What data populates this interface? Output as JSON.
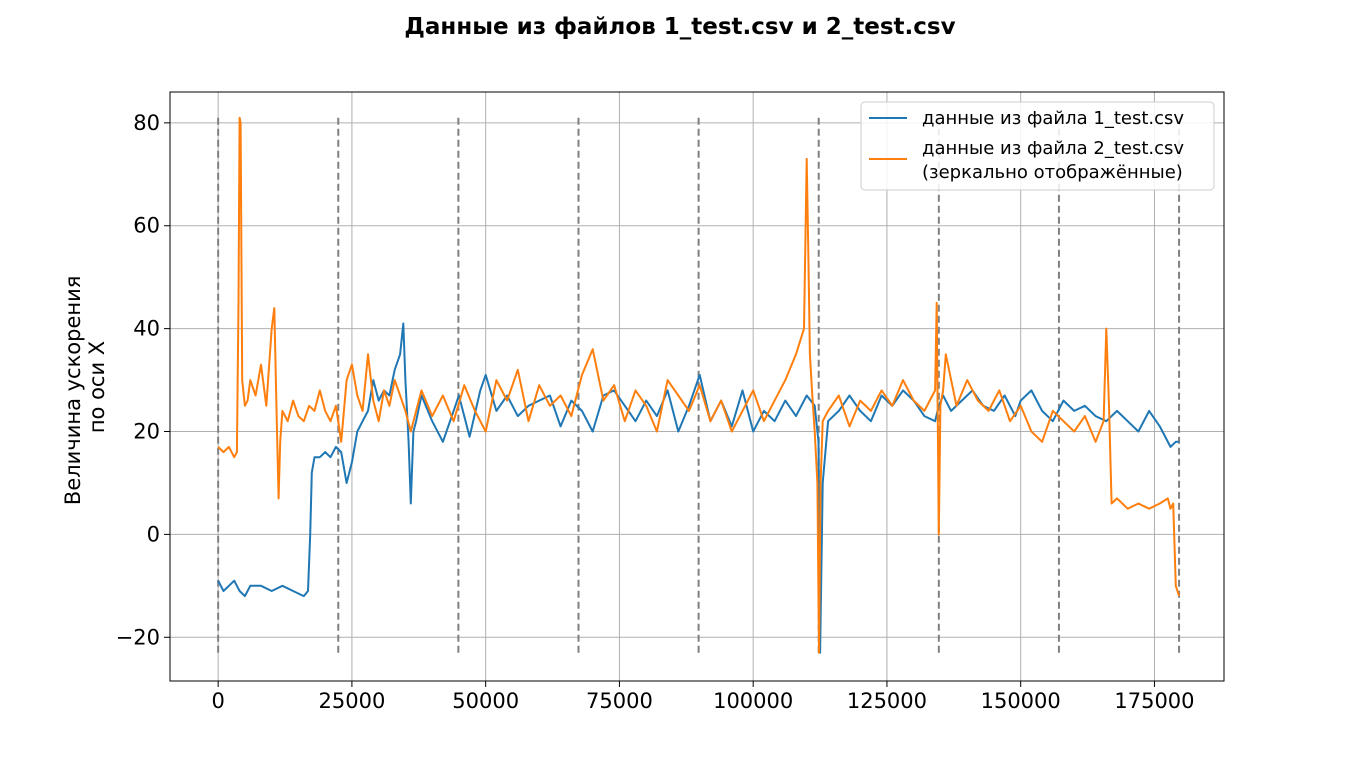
{
  "chart_data": {
    "type": "line",
    "title": "Данные из файлов 1_test.csv и 2_test.csv",
    "xlabel": "",
    "ylabel_lines": [
      "Величина ускорения",
      "по оси X"
    ],
    "xlim": [
      -9000,
      188000
    ],
    "ylim": [
      -28.5,
      86
    ],
    "x_ticks": [
      0,
      25000,
      50000,
      75000,
      100000,
      125000,
      150000,
      175000
    ],
    "x_tick_labels": [
      "0",
      "25000",
      "50000",
      "75000",
      "100000",
      "125000",
      "150000",
      "175000"
    ],
    "y_ticks": [
      -20,
      0,
      20,
      40,
      60,
      80
    ],
    "y_tick_labels": [
      "−20",
      "0",
      "20",
      "40",
      "60",
      "80"
    ],
    "grid": true,
    "legend_position": "top-right",
    "vlines": {
      "x": [
        0,
        22450,
        44900,
        67350,
        89800,
        112250,
        134700,
        157150,
        179600
      ],
      "ymin": -23,
      "ymax": 81,
      "color": "#808080",
      "style": "dashed"
    },
    "series": [
      {
        "name": "данные из файла 1_test.csv",
        "color": "#1f77b4",
        "x": [
          0,
          500,
          1000,
          2000,
          3000,
          4000,
          5000,
          6000,
          8000,
          10000,
          12000,
          14000,
          16000,
          16800,
          17200,
          17500,
          18000,
          19000,
          20000,
          21000,
          22000,
          23000,
          24000,
          25000,
          26000,
          27000,
          28000,
          29000,
          30000,
          31000,
          32000,
          33000,
          34000,
          34600,
          35000,
          35600,
          36000,
          36500,
          37000,
          38000,
          40000,
          42000,
          44000,
          45000,
          47000,
          49000,
          50000,
          52000,
          54000,
          56000,
          58000,
          60000,
          62000,
          64000,
          66000,
          68000,
          70000,
          72000,
          74000,
          76000,
          78000,
          80000,
          82000,
          84000,
          86000,
          88000,
          90000,
          92000,
          94000,
          96000,
          98000,
          100000,
          102000,
          104000,
          106000,
          108000,
          110000,
          111500,
          112200,
          112500,
          113000,
          114000,
          116000,
          118000,
          120000,
          122000,
          124000,
          126000,
          128000,
          130000,
          132000,
          134000,
          134700,
          135500,
          137000,
          139000,
          141000,
          143000,
          145000,
          147000,
          149000,
          150000,
          152000,
          154000,
          156000,
          158000,
          160000,
          162000,
          164000,
          166000,
          168000,
          170000,
          172000,
          174000,
          176000,
          178000,
          179000,
          179600
        ],
        "y": [
          -9,
          -10,
          -11,
          -10,
          -9,
          -11,
          -12,
          -10,
          -10,
          -11,
          -10,
          -11,
          -12,
          -11,
          0,
          12,
          15,
          15,
          16,
          15,
          17,
          16,
          10,
          14,
          20,
          22,
          24,
          30,
          26,
          28,
          27,
          32,
          35,
          41,
          30,
          18,
          6,
          20,
          22,
          27,
          22,
          18,
          24,
          27,
          19,
          28,
          31,
          24,
          27,
          23,
          25,
          26,
          27,
          21,
          26,
          24,
          20,
          27,
          28,
          25,
          22,
          26,
          23,
          28,
          20,
          25,
          31,
          22,
          26,
          21,
          28,
          20,
          24,
          22,
          26,
          23,
          27,
          25,
          18,
          -23,
          10,
          22,
          24,
          27,
          24,
          22,
          27,
          25,
          28,
          26,
          23,
          22,
          25,
          27,
          24,
          26,
          28,
          25,
          24,
          27,
          23,
          26,
          28,
          24,
          22,
          26,
          24,
          25,
          23,
          22,
          24,
          22,
          20,
          24,
          21,
          17,
          18,
          18
        ]
      },
      {
        "name": "данные из файла 2_test.csv\n(зеркально отображённые)",
        "color": "#ff7f0e",
        "x": [
          0,
          1000,
          2000,
          3000,
          3500,
          3800,
          4000,
          4200,
          4500,
          5000,
          5500,
          6000,
          7000,
          8000,
          9000,
          10000,
          10500,
          11000,
          11300,
          11600,
          12000,
          13000,
          14000,
          15000,
          16000,
          17000,
          18000,
          19000,
          20000,
          21000,
          22000,
          23000,
          24000,
          25000,
          26000,
          27000,
          28000,
          29000,
          30000,
          31000,
          32000,
          33000,
          34000,
          35000,
          36000,
          38000,
          40000,
          42000,
          44000,
          46000,
          48000,
          50000,
          52000,
          54000,
          56000,
          58000,
          60000,
          62000,
          64000,
          66000,
          68000,
          70000,
          72000,
          74000,
          76000,
          78000,
          80000,
          82000,
          84000,
          86000,
          88000,
          90000,
          92000,
          94000,
          96000,
          98000,
          100000,
          102000,
          104000,
          106000,
          108000,
          109500,
          110000,
          110300,
          110600,
          111000,
          111500,
          112000,
          112300,
          112600,
          113000,
          114000,
          116000,
          118000,
          120000,
          122000,
          124000,
          126000,
          128000,
          130000,
          132000,
          134000,
          134300,
          134700,
          135000,
          135500,
          136000,
          138000,
          140000,
          142000,
          144000,
          146000,
          148000,
          150000,
          152000,
          154000,
          156000,
          158000,
          160000,
          162000,
          164000,
          165500,
          166000,
          166500,
          167000,
          168000,
          170000,
          172000,
          174000,
          176000,
          177500,
          178000,
          178500,
          179000,
          179600
        ],
        "y": [
          17,
          16,
          17,
          15,
          16,
          45,
          81,
          80,
          30,
          25,
          26,
          30,
          27,
          33,
          25,
          40,
          44,
          20,
          7,
          18,
          24,
          22,
          26,
          23,
          22,
          25,
          24,
          28,
          24,
          22,
          25,
          18,
          30,
          33,
          27,
          24,
          35,
          26,
          22,
          28,
          25,
          30,
          27,
          24,
          20,
          28,
          23,
          27,
          22,
          29,
          24,
          20,
          30,
          26,
          32,
          22,
          29,
          25,
          27,
          23,
          31,
          36,
          26,
          29,
          22,
          28,
          25,
          20,
          30,
          27,
          24,
          29,
          22,
          26,
          20,
          24,
          28,
          22,
          26,
          30,
          35,
          40,
          73,
          55,
          35,
          28,
          20,
          10,
          -23,
          10,
          22,
          24,
          27,
          21,
          26,
          24,
          28,
          25,
          30,
          26,
          24,
          28,
          45,
          0,
          25,
          28,
          35,
          25,
          30,
          26,
          24,
          28,
          22,
          25,
          20,
          18,
          24,
          22,
          20,
          23,
          18,
          22,
          40,
          25,
          6,
          7,
          5,
          6,
          5,
          6,
          7,
          5,
          6,
          -10,
          -12
        ]
      }
    ]
  }
}
